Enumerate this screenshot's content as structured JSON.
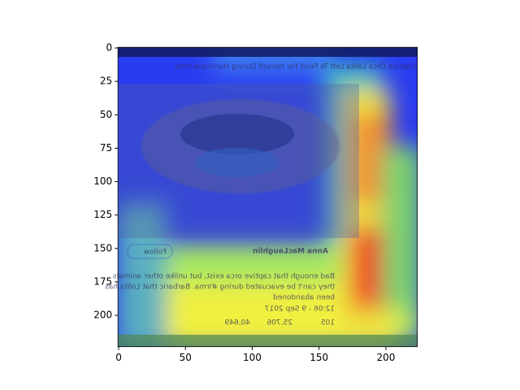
{
  "chart_data": {
    "type": "image",
    "xlim": [
      -0.5,
      223.5
    ],
    "ylim": [
      223.5,
      -0.5
    ],
    "xticks": [
      0,
      50,
      100,
      150,
      200
    ],
    "yticks": [
      0,
      25,
      50,
      75,
      100,
      125,
      150,
      175,
      200
    ],
    "image_text": {
      "headline": "Captive Orca Lolita Left To Fend For Herself During Hurricane Irma",
      "author": "Anna MacLaughlin",
      "follow": "Follow",
      "tweet": [
        "Bad enough that captive orca exist, but unlike other animals",
        "they can't be evacuated during #Irma. Barbaric that Lolita has",
        "been abandoned"
      ],
      "date": "12:06 - 9 Sep 2017",
      "counts": [
        "105",
        "25,706",
        "40,649"
      ]
    }
  }
}
